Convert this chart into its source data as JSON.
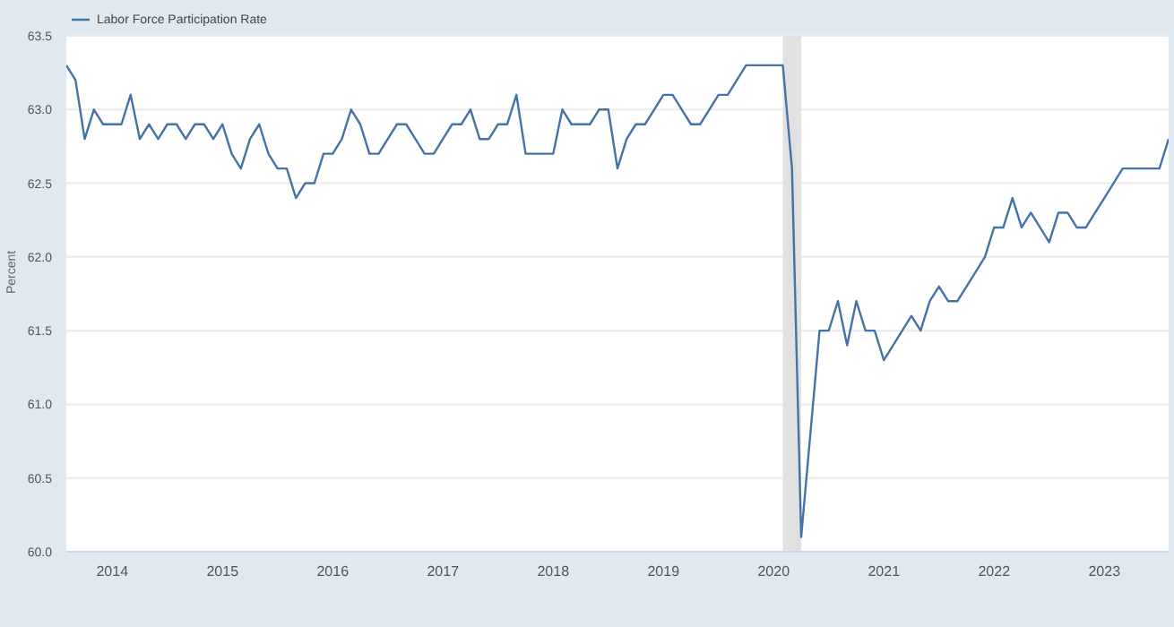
{
  "chart_data": {
    "type": "line",
    "ylabel": "Percent",
    "x": [
      "2013-08",
      "2013-09",
      "2013-10",
      "2013-11",
      "2013-12",
      "2014-01",
      "2014-02",
      "2014-03",
      "2014-04",
      "2014-05",
      "2014-06",
      "2014-07",
      "2014-08",
      "2014-09",
      "2014-10",
      "2014-11",
      "2014-12",
      "2015-01",
      "2015-02",
      "2015-03",
      "2015-04",
      "2015-05",
      "2015-06",
      "2015-07",
      "2015-08",
      "2015-09",
      "2015-10",
      "2015-11",
      "2015-12",
      "2016-01",
      "2016-02",
      "2016-03",
      "2016-04",
      "2016-05",
      "2016-06",
      "2016-07",
      "2016-08",
      "2016-09",
      "2016-10",
      "2016-11",
      "2016-12",
      "2017-01",
      "2017-02",
      "2017-03",
      "2017-04",
      "2017-05",
      "2017-06",
      "2017-07",
      "2017-08",
      "2017-09",
      "2017-10",
      "2017-11",
      "2017-12",
      "2018-01",
      "2018-02",
      "2018-03",
      "2018-04",
      "2018-05",
      "2018-06",
      "2018-07",
      "2018-08",
      "2018-09",
      "2018-10",
      "2018-11",
      "2018-12",
      "2019-01",
      "2019-02",
      "2019-03",
      "2019-04",
      "2019-05",
      "2019-06",
      "2019-07",
      "2019-08",
      "2019-09",
      "2019-10",
      "2019-11",
      "2019-12",
      "2020-01",
      "2020-02",
      "2020-03",
      "2020-04",
      "2020-05",
      "2020-06",
      "2020-07",
      "2020-08",
      "2020-09",
      "2020-10",
      "2020-11",
      "2020-12",
      "2021-01",
      "2021-02",
      "2021-03",
      "2021-04",
      "2021-05",
      "2021-06",
      "2021-07",
      "2021-08",
      "2021-09",
      "2021-10",
      "2021-11",
      "2021-12",
      "2022-01",
      "2022-02",
      "2022-03",
      "2022-04",
      "2022-05",
      "2022-06",
      "2022-07",
      "2022-08",
      "2022-09",
      "2022-10",
      "2022-11",
      "2022-12",
      "2023-01",
      "2023-02",
      "2023-03",
      "2023-04",
      "2023-05",
      "2023-06",
      "2023-07",
      "2023-08"
    ],
    "series": [
      {
        "name": "Labor Force Participation Rate",
        "color": "#4572a7",
        "values": [
          63.3,
          63.2,
          62.8,
          63.0,
          62.9,
          62.9,
          62.9,
          63.1,
          62.8,
          62.9,
          62.8,
          62.9,
          62.9,
          62.8,
          62.9,
          62.9,
          62.8,
          62.9,
          62.7,
          62.6,
          62.8,
          62.9,
          62.7,
          62.6,
          62.6,
          62.4,
          62.5,
          62.5,
          62.7,
          62.7,
          62.8,
          63.0,
          62.9,
          62.7,
          62.7,
          62.8,
          62.9,
          62.9,
          62.8,
          62.7,
          62.7,
          62.8,
          62.9,
          62.9,
          63.0,
          62.8,
          62.8,
          62.9,
          62.9,
          63.1,
          62.7,
          62.7,
          62.7,
          62.7,
          63.0,
          62.9,
          62.9,
          62.9,
          63.0,
          63.0,
          62.6,
          62.8,
          62.9,
          62.9,
          63.0,
          63.1,
          63.1,
          63.0,
          62.9,
          62.9,
          63.0,
          63.1,
          63.1,
          63.2,
          63.3,
          63.3,
          63.3,
          63.3,
          63.3,
          62.6,
          60.1,
          60.8,
          61.5,
          61.5,
          61.7,
          61.4,
          61.7,
          61.5,
          61.5,
          61.3,
          61.4,
          61.5,
          61.6,
          61.5,
          61.7,
          61.8,
          61.7,
          61.7,
          61.8,
          61.9,
          62.0,
          62.2,
          62.2,
          62.4,
          62.2,
          62.3,
          62.2,
          62.1,
          62.3,
          62.3,
          62.2,
          62.2,
          62.3,
          62.4,
          62.5,
          62.6,
          62.6,
          62.6,
          62.6,
          62.6,
          62.8
        ]
      }
    ],
    "xlim": [
      "2013-08",
      "2023-08"
    ],
    "xticks": [
      "2014",
      "2015",
      "2016",
      "2017",
      "2018",
      "2019",
      "2020",
      "2021",
      "2022",
      "2023"
    ],
    "ylim": [
      60,
      63.5
    ],
    "yticks": [
      {
        "value": 60,
        "label": "60.0"
      },
      60.5,
      {
        "value": 61,
        "label": "61.0"
      },
      61.5,
      {
        "value": 62,
        "label": "62.0"
      },
      62.5,
      {
        "value": 63,
        "label": "63.0"
      },
      63.5
    ],
    "bands": [
      {
        "axis": "x",
        "from": "2020-02",
        "to": "2020-04",
        "color": "#e1e1e1"
      }
    ],
    "grid": "y",
    "legend": "top left",
    "marker": "none",
    "line_style": "solid"
  }
}
